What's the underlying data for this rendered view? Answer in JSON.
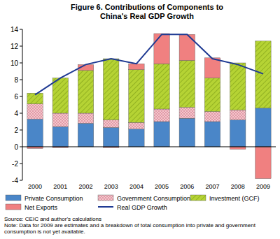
{
  "chart_data": {
    "type": "bar",
    "stacked": true,
    "title": "Figure 6. Contributions of Components to China's Real GDP Growth",
    "categories": [
      "2000",
      "2001",
      "2002",
      "2003",
      "2004",
      "2005",
      "2006",
      "2007",
      "2008",
      "2009"
    ],
    "series": [
      {
        "name": "Private Consumption",
        "color": "#4a86c8",
        "values": [
          3.3,
          2.4,
          2.8,
          2.3,
          2.1,
          3.0,
          3.4,
          3.0,
          3.2,
          4.6
        ]
      },
      {
        "name": "Government Consumption",
        "color": "#f4c6cc",
        "values": [
          1.8,
          1.6,
          1.2,
          0.9,
          0.8,
          1.5,
          1.3,
          1.2,
          1.2,
          null
        ]
      },
      {
        "name": "Investment (GCF)",
        "color": "#b5d334",
        "values": [
          1.3,
          4.2,
          5.1,
          7.3,
          6.3,
          5.4,
          5.6,
          4.0,
          5.6,
          8.0
        ]
      },
      {
        "name": "Net Exports",
        "color": "#f08080",
        "values": [
          -0.2,
          -0.1,
          0.7,
          -0.1,
          0.7,
          3.6,
          3.1,
          2.4,
          -0.3,
          -3.8
        ]
      },
      {
        "name": "Real GDP Growth",
        "color": "#1f3a93",
        "type": "line",
        "values": [
          6.2,
          8.2,
          9.8,
          10.5,
          9.9,
          13.4,
          13.4,
          10.5,
          9.8,
          8.7
        ]
      }
    ],
    "ylim": [
      -4,
      14
    ],
    "yticks": [
      -4,
      -2,
      0,
      2,
      4,
      6,
      8,
      10,
      12,
      14
    ],
    "grid": false,
    "legend": "bottom",
    "source": "Source: CEIC and author's calculations",
    "note": "Note: Data for 2009 are estimates and a breakdown of total consumption into private and government consumption is not yet available."
  }
}
